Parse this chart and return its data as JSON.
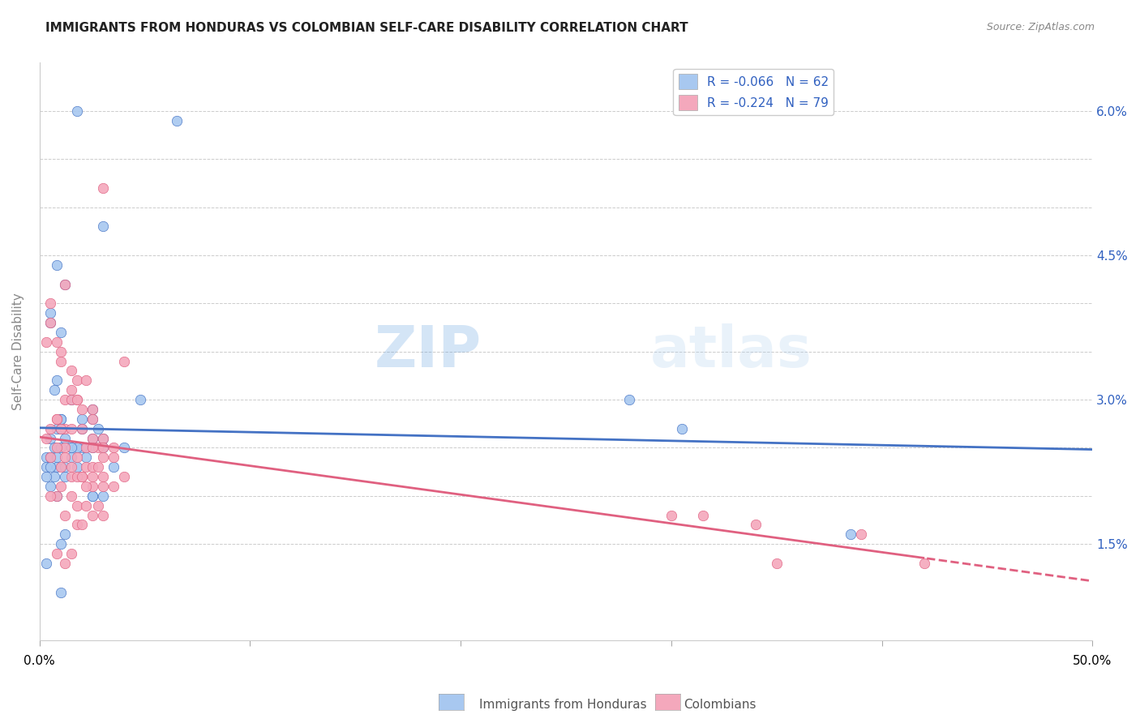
{
  "title": "IMMIGRANTS FROM HONDURAS VS COLOMBIAN SELF-CARE DISABILITY CORRELATION CHART",
  "source": "Source: ZipAtlas.com",
  "ylabel": "Self-Care Disability",
  "legend_label1": "Immigrants from Honduras",
  "legend_label2": "Colombians",
  "legend_R1": "R = -0.066",
  "legend_N1": "N = 62",
  "legend_R2": "R = -0.224",
  "legend_N2": "N = 79",
  "color_blue": "#a8c8f0",
  "color_pink": "#f4a8bc",
  "color_blue_dark": "#4472c4",
  "color_pink_dark": "#e06080",
  "color_text_blue": "#3060c0",
  "watermark_zip": "ZIP",
  "watermark_atlas": "atlas",
  "xlim": [
    0.0,
    0.5
  ],
  "ylim_low": 0.005,
  "ylim_high": 0.065,
  "ytick_positions": [
    0.015,
    0.02,
    0.025,
    0.03,
    0.035,
    0.04,
    0.045,
    0.05,
    0.055,
    0.06
  ],
  "ytick_labels_right": [
    "1.5%",
    "",
    "",
    "3.0%",
    "",
    "",
    "4.5%",
    "",
    "",
    "6.0%"
  ],
  "xtick_positions": [
    0.0,
    0.1,
    0.2,
    0.3,
    0.4,
    0.5
  ],
  "blue_scatter_x": [
    0.018,
    0.065,
    0.03,
    0.008,
    0.012,
    0.005,
    0.005,
    0.01,
    0.008,
    0.007,
    0.015,
    0.025,
    0.01,
    0.02,
    0.01,
    0.008,
    0.01,
    0.005,
    0.012,
    0.007,
    0.01,
    0.003,
    0.005,
    0.003,
    0.008,
    0.012,
    0.025,
    0.02,
    0.015,
    0.018,
    0.028,
    0.025,
    0.03,
    0.022,
    0.03,
    0.015,
    0.02,
    0.018,
    0.025,
    0.022,
    0.04,
    0.305,
    0.048,
    0.28,
    0.385,
    0.025,
    0.007,
    0.005,
    0.012,
    0.003,
    0.015,
    0.008,
    0.025,
    0.035,
    0.03,
    0.012,
    0.01,
    0.003,
    0.01,
    0.018,
    0.005,
    0.008
  ],
  "blue_scatter_y": [
    0.06,
    0.059,
    0.048,
    0.044,
    0.042,
    0.039,
    0.038,
    0.037,
    0.032,
    0.031,
    0.03,
    0.029,
    0.028,
    0.028,
    0.028,
    0.027,
    0.027,
    0.026,
    0.026,
    0.025,
    0.025,
    0.024,
    0.024,
    0.023,
    0.023,
    0.022,
    0.028,
    0.027,
    0.025,
    0.025,
    0.027,
    0.026,
    0.026,
    0.025,
    0.025,
    0.024,
    0.025,
    0.025,
    0.025,
    0.024,
    0.025,
    0.027,
    0.03,
    0.03,
    0.016,
    0.02,
    0.022,
    0.021,
    0.023,
    0.022,
    0.025,
    0.024,
    0.02,
    0.023,
    0.02,
    0.016,
    0.015,
    0.013,
    0.01,
    0.023,
    0.023,
    0.02
  ],
  "pink_scatter_x": [
    0.03,
    0.012,
    0.005,
    0.005,
    0.003,
    0.008,
    0.01,
    0.01,
    0.015,
    0.018,
    0.015,
    0.012,
    0.018,
    0.025,
    0.02,
    0.025,
    0.008,
    0.012,
    0.02,
    0.015,
    0.025,
    0.03,
    0.022,
    0.028,
    0.035,
    0.03,
    0.04,
    0.022,
    0.015,
    0.018,
    0.008,
    0.005,
    0.01,
    0.003,
    0.012,
    0.025,
    0.03,
    0.035,
    0.018,
    0.022,
    0.025,
    0.028,
    0.02,
    0.015,
    0.03,
    0.025,
    0.035,
    0.04,
    0.3,
    0.315,
    0.34,
    0.39,
    0.35,
    0.42,
    0.008,
    0.005,
    0.012,
    0.015,
    0.01,
    0.018,
    0.02,
    0.025,
    0.03,
    0.022,
    0.01,
    0.008,
    0.005,
    0.015,
    0.028,
    0.018,
    0.022,
    0.012,
    0.025,
    0.03,
    0.018,
    0.02,
    0.015,
    0.008,
    0.012
  ],
  "pink_scatter_y": [
    0.052,
    0.042,
    0.04,
    0.038,
    0.036,
    0.036,
    0.035,
    0.034,
    0.033,
    0.032,
    0.031,
    0.03,
    0.03,
    0.029,
    0.029,
    0.028,
    0.028,
    0.027,
    0.027,
    0.027,
    0.026,
    0.026,
    0.025,
    0.025,
    0.025,
    0.025,
    0.034,
    0.032,
    0.03,
    0.03,
    0.028,
    0.027,
    0.027,
    0.026,
    0.025,
    0.025,
    0.024,
    0.024,
    0.024,
    0.023,
    0.023,
    0.023,
    0.022,
    0.022,
    0.022,
    0.021,
    0.021,
    0.022,
    0.018,
    0.018,
    0.017,
    0.016,
    0.013,
    0.013,
    0.025,
    0.024,
    0.024,
    0.023,
    0.023,
    0.022,
    0.022,
    0.022,
    0.021,
    0.021,
    0.021,
    0.02,
    0.02,
    0.02,
    0.019,
    0.019,
    0.019,
    0.018,
    0.018,
    0.018,
    0.017,
    0.017,
    0.014,
    0.014,
    0.013
  ]
}
